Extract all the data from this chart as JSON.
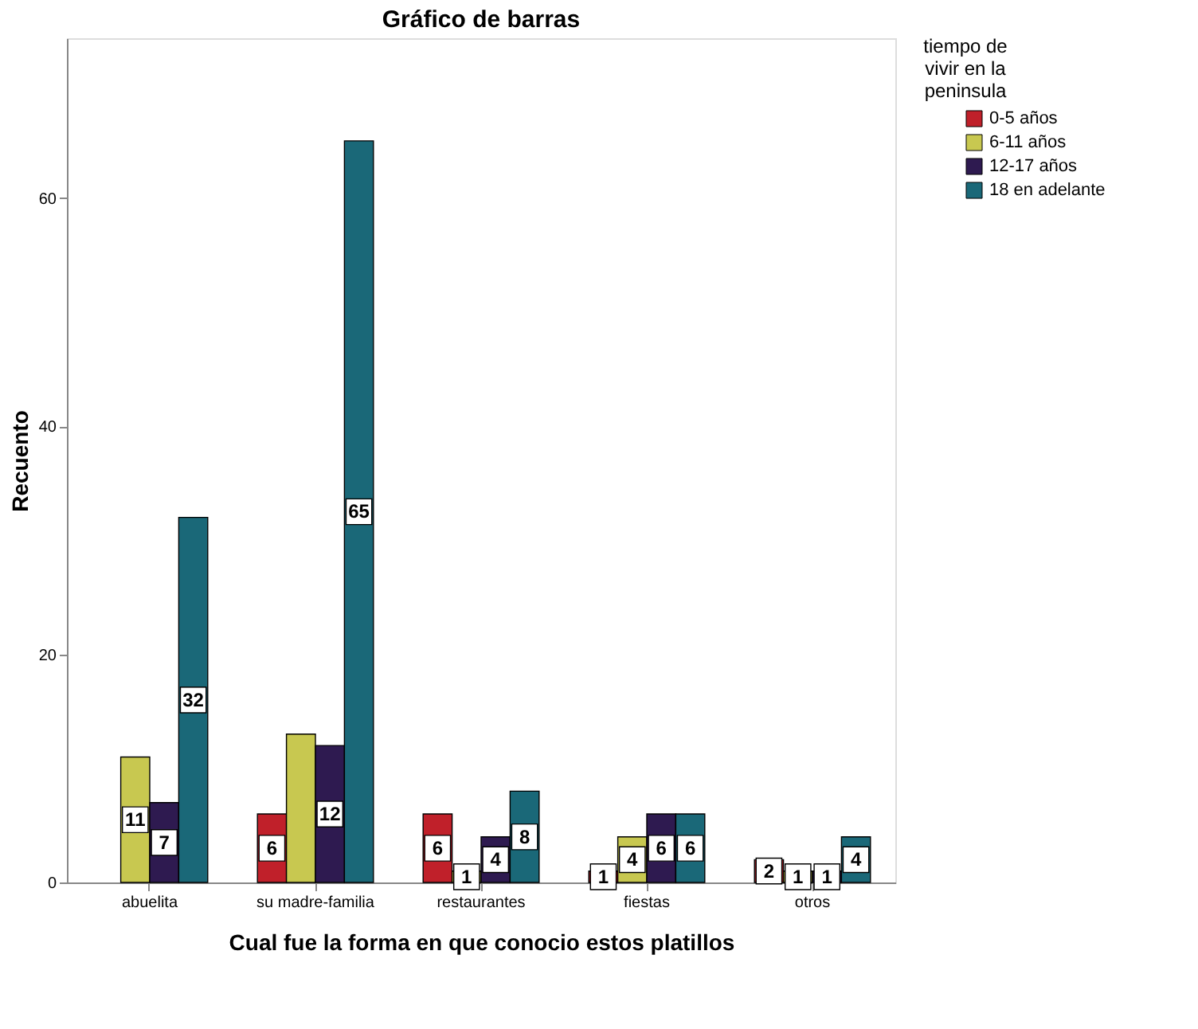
{
  "chart_data": {
    "type": "bar",
    "title": "Gráfico de barras",
    "xlabel": "Cual fue la forma en que conocio estos platillos",
    "ylabel": "Recuento",
    "legend_title": "tiempo de vivir en la peninsula",
    "categories": [
      "abuelita",
      "su madre-familia",
      "restaurantes",
      "fiestas",
      "otros"
    ],
    "series": [
      {
        "name": "0-5 años",
        "color": "#c0202a",
        "values": [
          null,
          6,
          6,
          1,
          2
        ],
        "value_labels": [
          null,
          "6",
          "6",
          "1",
          "2"
        ]
      },
      {
        "name": "6-11 años",
        "color": "#c8c850",
        "values": [
          11,
          13,
          1,
          4,
          1
        ],
        "value_labels": [
          "11",
          null,
          "1",
          "4",
          "1"
        ]
      },
      {
        "name": "12-17 años",
        "color": "#2e1a50",
        "values": [
          7,
          12,
          4,
          6,
          1
        ],
        "value_labels": [
          "7",
          "12",
          "4",
          "6",
          "1"
        ]
      },
      {
        "name": "18 en adelante",
        "color": "#1a6878",
        "values": [
          32,
          65,
          8,
          6,
          4
        ],
        "value_labels": [
          "32",
          "65",
          "8",
          "6",
          "4"
        ]
      }
    ],
    "ylim": [
      0,
      74
    ],
    "yticks": [
      0,
      20,
      40,
      60
    ],
    "grid": false,
    "legend": "top right"
  }
}
